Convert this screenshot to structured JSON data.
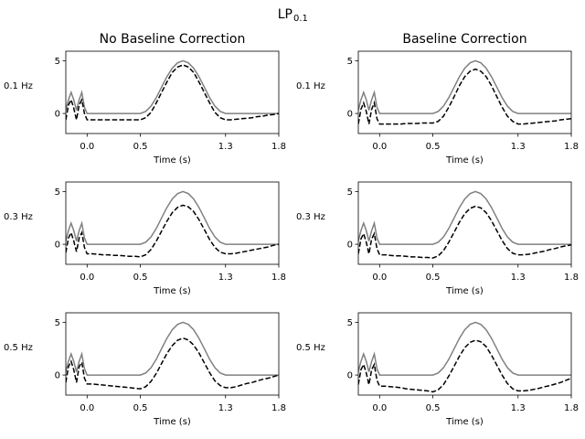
{
  "figure": {
    "title_main": "LP",
    "title_sub": "0.1",
    "column_titles": [
      "No Baseline Correction",
      "Baseline Correction"
    ],
    "row_labels": [
      "0.1 Hz",
      "0.3 Hz",
      "0.5 Hz"
    ]
  },
  "chart_data": {
    "type": "line",
    "layout": "3x2 grid of subplots",
    "xlabel": "Time (s)",
    "ylabel": "",
    "xlim": [
      -0.2,
      1.8
    ],
    "ylim": [
      -1.9,
      5.9
    ],
    "xticks": [
      0.0,
      0.5,
      1.3,
      1.8
    ],
    "xtick_labels": [
      "0.0",
      "0.5",
      "1.3",
      "1.8"
    ],
    "yticks": [
      0,
      5
    ],
    "ytick_labels": [
      "0",
      "5"
    ],
    "grid": false,
    "colors": {
      "original": "#808080",
      "filtered": "#000000"
    },
    "styles": {
      "original": "solid",
      "filtered": "dashed"
    },
    "x": [
      -0.2,
      -0.175,
      -0.15,
      -0.125,
      -0.1,
      -0.075,
      -0.05,
      -0.025,
      0,
      0.05,
      0.1,
      0.15,
      0.2,
      0.25,
      0.3,
      0.35,
      0.4,
      0.45,
      0.5,
      0.55,
      0.6,
      0.65,
      0.7,
      0.75,
      0.8,
      0.85,
      0.9,
      0.95,
      1.0,
      1.05,
      1.1,
      1.15,
      1.2,
      1.25,
      1.3,
      1.35,
      1.4,
      1.45,
      1.5,
      1.55,
      1.6,
      1.65,
      1.7,
      1.75,
      1.8
    ],
    "original": [
      0.3,
      1.3,
      2,
      1.3,
      0.3,
      1.3,
      2,
      0.6,
      0,
      0,
      0,
      0,
      0,
      0,
      0,
      0,
      0,
      0,
      0,
      0.2,
      0.7,
      1.5,
      2.5,
      3.5,
      4.3,
      4.8,
      5,
      4.8,
      4.3,
      3.5,
      2.5,
      1.5,
      0.7,
      0.2,
      0,
      0,
      0,
      0,
      0,
      0,
      0,
      0,
      0,
      0,
      0
    ],
    "panels": [
      {
        "row": "0.1 Hz",
        "column": "No Baseline Correction",
        "filtered": [
          -0.6,
          0.8,
          1.3,
          0.5,
          -0.6,
          0.8,
          1.3,
          0,
          -0.6,
          -0.6,
          -0.6,
          -0.6,
          -0.6,
          -0.6,
          -0.6,
          -0.6,
          -0.6,
          -0.6,
          -0.6,
          -0.4,
          0.1,
          1.0,
          2.0,
          3.0,
          3.9,
          4.4,
          4.6,
          4.4,
          3.9,
          3.0,
          2.0,
          1.0,
          0.1,
          -0.4,
          -0.6,
          -0.6,
          -0.55,
          -0.5,
          -0.45,
          -0.4,
          -0.3,
          -0.25,
          -0.15,
          -0.1,
          0
        ]
      },
      {
        "row": "0.1 Hz",
        "column": "Baseline Correction",
        "filtered": [
          -1.0,
          0.4,
          1.0,
          0.2,
          -1.0,
          0.4,
          1.0,
          -0.5,
          -1.0,
          -1.0,
          -1.0,
          -1.0,
          -1.0,
          -0.95,
          -0.95,
          -0.95,
          -0.9,
          -0.9,
          -0.9,
          -0.75,
          -0.25,
          0.6,
          1.6,
          2.65,
          3.5,
          4.0,
          4.2,
          4.0,
          3.5,
          2.65,
          1.6,
          0.6,
          -0.25,
          -0.75,
          -1.0,
          -1.0,
          -0.95,
          -0.9,
          -0.85,
          -0.8,
          -0.75,
          -0.7,
          -0.6,
          -0.55,
          -0.5
        ]
      },
      {
        "row": "0.3 Hz",
        "column": "No Baseline Correction",
        "filtered": [
          -0.8,
          0.6,
          1.1,
          0.3,
          -0.7,
          0.6,
          1.1,
          -0.3,
          -0.9,
          -0.9,
          -0.95,
          -1.0,
          -1.0,
          -1.05,
          -1.05,
          -1.1,
          -1.15,
          -1.15,
          -1.2,
          -1.0,
          -0.5,
          0.3,
          1.25,
          2.2,
          3.0,
          3.5,
          3.7,
          3.55,
          3.1,
          2.35,
          1.4,
          0.45,
          -0.3,
          -0.75,
          -0.9,
          -0.9,
          -0.85,
          -0.75,
          -0.65,
          -0.55,
          -0.45,
          -0.35,
          -0.25,
          -0.1,
          0
        ]
      },
      {
        "row": "0.3 Hz",
        "column": "Baseline Correction",
        "filtered": [
          -0.9,
          0.5,
          1.0,
          0.2,
          -0.9,
          0.5,
          1.0,
          -0.4,
          -1.0,
          -1.0,
          -1.05,
          -1.1,
          -1.1,
          -1.15,
          -1.2,
          -1.2,
          -1.25,
          -1.25,
          -1.3,
          -1.1,
          -0.6,
          0.2,
          1.15,
          2.1,
          2.9,
          3.4,
          3.6,
          3.45,
          3.0,
          2.25,
          1.3,
          0.35,
          -0.4,
          -0.85,
          -1.0,
          -1.0,
          -0.95,
          -0.85,
          -0.75,
          -0.65,
          -0.5,
          -0.4,
          -0.25,
          -0.15,
          -0.05
        ]
      },
      {
        "row": "0.5 Hz",
        "column": "No Baseline Correction",
        "filtered": [
          -0.7,
          0.8,
          1.3,
          0.5,
          -0.7,
          0.8,
          1.2,
          -0.3,
          -0.85,
          -0.85,
          -0.9,
          -0.95,
          -1.0,
          -1.05,
          -1.1,
          -1.15,
          -1.2,
          -1.25,
          -1.3,
          -1.1,
          -0.6,
          0.15,
          1.1,
          2.05,
          2.8,
          3.3,
          3.5,
          3.33,
          2.85,
          2.1,
          1.16,
          0.22,
          -0.55,
          -1.0,
          -1.2,
          -1.2,
          -1.1,
          -0.95,
          -0.8,
          -0.7,
          -0.55,
          -0.4,
          -0.3,
          -0.15,
          0
        ]
      },
      {
        "row": "0.5 Hz",
        "column": "Baseline Correction",
        "filtered": [
          -0.9,
          0.5,
          1.0,
          0.2,
          -0.9,
          0.5,
          1.0,
          -0.5,
          -1.05,
          -1.05,
          -1.1,
          -1.15,
          -1.2,
          -1.3,
          -1.35,
          -1.4,
          -1.45,
          -1.5,
          -1.6,
          -1.4,
          -0.9,
          -0.1,
          0.85,
          1.8,
          2.6,
          3.1,
          3.3,
          3.15,
          2.7,
          1.9,
          0.95,
          0.0,
          -0.8,
          -1.3,
          -1.5,
          -1.5,
          -1.45,
          -1.35,
          -1.25,
          -1.1,
          -1.0,
          -0.85,
          -0.7,
          -0.5,
          -0.3
        ]
      }
    ]
  }
}
